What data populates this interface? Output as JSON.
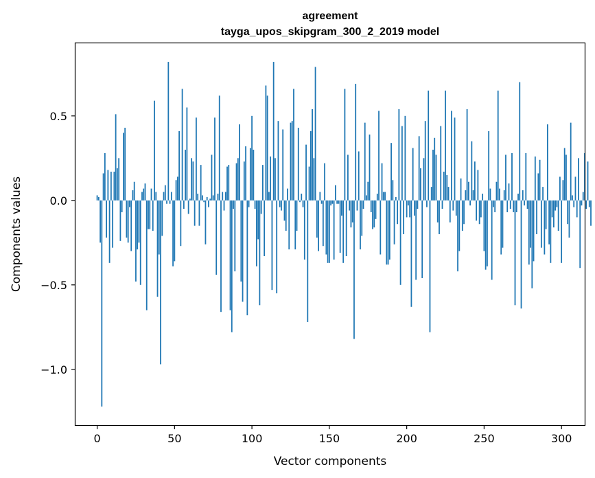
{
  "chart_data": {
    "type": "bar",
    "title": "agreement",
    "subtitle": "tayga_upos_skipgram_300_2_2019 model",
    "xlabel": "Vector components",
    "ylabel": "Components values",
    "xlim": [
      -14,
      315
    ],
    "ylim": [
      -1.33,
      0.93
    ],
    "x_ticks": [
      0,
      50,
      100,
      150,
      200,
      250,
      300
    ],
    "x_tick_labels": [
      "0",
      "50",
      "100",
      "150",
      "200",
      "250",
      "300"
    ],
    "y_ticks": [
      -1.0,
      -0.5,
      0.0,
      0.5
    ],
    "y_tick_labels": [
      "−1.0",
      "−0.5",
      "0.0",
      "0.5"
    ],
    "bar_color": "#1f77b4",
    "series": [
      {
        "name": "agreement",
        "values": [
          0.03,
          0.02,
          -0.25,
          -1.22,
          0.16,
          0.28,
          -0.22,
          0.18,
          -0.37,
          0.17,
          -0.28,
          0.17,
          0.51,
          0.19,
          0.25,
          -0.24,
          -0.07,
          0.4,
          0.43,
          -0.22,
          -0.25,
          -0.04,
          -0.3,
          0.06,
          0.11,
          -0.48,
          -0.29,
          -0.25,
          -0.5,
          0.05,
          0.07,
          0.1,
          -0.65,
          -0.17,
          -0.17,
          0.07,
          -0.18,
          0.59,
          0.05,
          -0.57,
          -0.32,
          -0.97,
          -0.21,
          0.05,
          0.09,
          -0.02,
          0.82,
          -0.02,
          0.05,
          -0.39,
          -0.36,
          0.12,
          0.14,
          0.41,
          -0.27,
          0.66,
          -0.05,
          0.3,
          0.55,
          -0.08,
          0.01,
          0.25,
          0.23,
          -0.15,
          0.49,
          0.04,
          -0.15,
          0.21,
          0.03,
          -0.01,
          -0.26,
          0.02,
          -0.04,
          0.01,
          0.27,
          0.03,
          0.49,
          -0.44,
          0.04,
          0.62,
          -0.66,
          0.05,
          -0.06,
          0.05,
          0.2,
          0.21,
          -0.65,
          -0.78,
          -0.05,
          -0.42,
          0.22,
          0.25,
          0.45,
          -0.48,
          -0.6,
          0.23,
          0.32,
          -0.68,
          -0.04,
          0.31,
          0.5,
          0.3,
          -0.05,
          -0.39,
          -0.23,
          -0.62,
          -0.08,
          0.21,
          -0.33,
          0.68,
          0.62,
          0.05,
          0.26,
          -0.53,
          0.82,
          0.25,
          -0.55,
          0.47,
          -0.04,
          -0.06,
          0.42,
          -0.12,
          -0.18,
          0.07,
          -0.29,
          0.46,
          0.47,
          0.66,
          -0.29,
          -0.18,
          0.43,
          -0.01,
          0.04,
          -0.04,
          -0.35,
          0.33,
          -0.72,
          0.2,
          0.41,
          0.54,
          0.25,
          0.79,
          -0.22,
          -0.3,
          0.05,
          -0.02,
          -0.27,
          0.22,
          -0.32,
          -0.37,
          -0.37,
          -0.03,
          -0.02,
          -0.35,
          0.09,
          -0.02,
          -0.02,
          -0.31,
          -0.09,
          -0.37,
          0.66,
          -0.33,
          0.27,
          -0.06,
          -0.16,
          -0.13,
          -0.82,
          0.69,
          -0.06,
          0.29,
          -0.29,
          -0.21,
          -0.05,
          0.46,
          0.03,
          0.11,
          0.39,
          -0.07,
          -0.17,
          -0.16,
          -0.11,
          0.04,
          0.53,
          -0.32,
          0.22,
          0.05,
          0.05,
          -0.38,
          -0.38,
          -0.35,
          0.34,
          0.12,
          -0.26,
          0.02,
          -0.14,
          0.54,
          -0.5,
          0.44,
          -0.2,
          0.5,
          -0.1,
          -0.03,
          -0.1,
          -0.63,
          0.31,
          -0.09,
          -0.47,
          -0.05,
          0.38,
          0.19,
          -0.46,
          0.25,
          0.47,
          -0.04,
          0.65,
          -0.78,
          0.08,
          0.3,
          0.37,
          0.27,
          -0.13,
          -0.2,
          0.44,
          -0.05,
          0.17,
          0.65,
          0.15,
          0.08,
          -0.13,
          0.53,
          -0.06,
          0.49,
          -0.09,
          -0.42,
          -0.3,
          0.13,
          -0.18,
          -0.14,
          0.06,
          0.54,
          0.11,
          -0.03,
          0.35,
          0.06,
          0.23,
          -0.12,
          0.18,
          -0.14,
          -0.1,
          0.04,
          -0.3,
          -0.41,
          -0.39,
          0.41,
          0.07,
          -0.47,
          -0.04,
          -0.07,
          0.11,
          0.65,
          0.07,
          -0.32,
          -0.28,
          0.06,
          0.27,
          -0.07,
          0.1,
          -0.05,
          0.28,
          -0.07,
          -0.62,
          -0.07,
          0.04,
          0.7,
          -0.64,
          0.06,
          -0.03,
          0.28,
          -0.05,
          -0.38,
          -0.28,
          -0.52,
          -0.36,
          0.26,
          -0.2,
          0.16,
          0.24,
          -0.28,
          0.08,
          -0.32,
          -0.17,
          0.45,
          -0.26,
          -0.37,
          -0.1,
          -0.16,
          -0.06,
          -0.04,
          -0.18,
          0.14,
          -0.37,
          0.12,
          0.31,
          0.27,
          -0.14,
          -0.22,
          0.46,
          0.03,
          -0.04,
          0.14,
          -0.1,
          0.25,
          -0.4,
          -0.03,
          0.05,
          0.28,
          -0.05,
          0.23,
          -0.04,
          -0.15
        ]
      }
    ]
  }
}
